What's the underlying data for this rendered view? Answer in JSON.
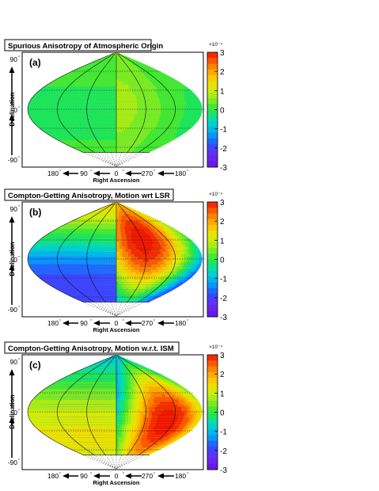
{
  "chart_data": [
    {
      "type": "heatmap",
      "panel_label": "(a)",
      "title": "Spurious Anisotropy of Atmospheric Origin",
      "projection": "sinusoidal sky map",
      "xlabel": "Right Ascension",
      "ylabel": "Declination",
      "x_ticks": [
        "180",
        "90",
        "0",
        "270",
        "180"
      ],
      "y_ticks": [
        "90",
        "0",
        "-90"
      ],
      "colorbar": {
        "ticks": [
          "3",
          "2",
          "1",
          "0",
          "-1",
          "-2",
          "-3"
        ],
        "exponent": "×10⁻⁴",
        "range": [
          -3,
          3
        ]
      },
      "dipole": {
        "amplitude": 0.4,
        "peak_ra": 0,
        "peak_dec": 5,
        "offset": 0.3
      }
    },
    {
      "type": "heatmap",
      "panel_label": "(b)",
      "title": "Compton-Getting Anisotropy, Motion wrt LSR",
      "projection": "sinusoidal sky map",
      "xlabel": "Right Ascension",
      "ylabel": "Declination",
      "x_ticks": [
        "180",
        "90",
        "0",
        "270",
        "180"
      ],
      "y_ticks": [
        "90",
        "0",
        "-90"
      ],
      "colorbar": {
        "ticks": [
          "3",
          "2",
          "1",
          "0",
          "-1",
          "-2",
          "-3"
        ],
        "exponent": "×10⁻⁴",
        "range": [
          -3,
          3
        ]
      },
      "dipole": {
        "amplitude": 3.2,
        "peak_ra": 300,
        "peak_dec": 30,
        "offset": 0
      }
    },
    {
      "type": "heatmap",
      "panel_label": "(c)",
      "title": "Compton-Getting Anisotropy, Motion w.r.t. ISM",
      "projection": "sinusoidal sky map",
      "xlabel": "Right Ascension",
      "ylabel": "Declination",
      "x_ticks": [
        "180",
        "90",
        "0",
        "270",
        "180"
      ],
      "y_ticks": [
        "90",
        "0",
        "-90"
      ],
      "colorbar": {
        "ticks": [
          "3",
          "2",
          "1",
          "0",
          "-1",
          "-2",
          "-3"
        ],
        "exponent": "×10⁻⁴",
        "range": [
          -3,
          3
        ]
      },
      "dipole": {
        "amplitude": 3.2,
        "peak_ra": 255,
        "peak_dec": -15,
        "offset": 0
      }
    }
  ]
}
